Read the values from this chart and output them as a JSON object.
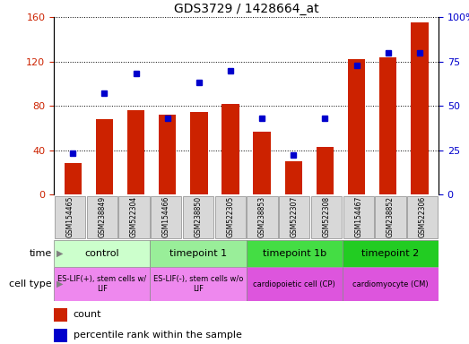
{
  "title": "GDS3729 / 1428664_at",
  "samples": [
    "GSM154465",
    "GSM238849",
    "GSM522304",
    "GSM154466",
    "GSM238850",
    "GSM522305",
    "GSM238853",
    "GSM522307",
    "GSM522308",
    "GSM154467",
    "GSM238852",
    "GSM522306"
  ],
  "counts": [
    28,
    68,
    76,
    72,
    74,
    82,
    57,
    30,
    43,
    122,
    124,
    155
  ],
  "percentiles": [
    23,
    57,
    68,
    43,
    63,
    70,
    43,
    22,
    43,
    73,
    80,
    80
  ],
  "ylim_left": [
    0,
    160
  ],
  "ylim_right": [
    0,
    100
  ],
  "yticks_left": [
    0,
    40,
    80,
    120,
    160
  ],
  "yticks_right": [
    0,
    25,
    50,
    75,
    100
  ],
  "bar_color": "#cc2200",
  "percentile_color": "#0000cc",
  "groups": [
    {
      "label": "control",
      "start": 0,
      "end": 3,
      "color": "#ccffcc"
    },
    {
      "label": "timepoint 1",
      "start": 3,
      "end": 6,
      "color": "#99ee99"
    },
    {
      "label": "timepoint 1b",
      "start": 6,
      "end": 9,
      "color": "#44dd44"
    },
    {
      "label": "timepoint 2",
      "start": 9,
      "end": 12,
      "color": "#22cc22"
    }
  ],
  "cell_types": [
    {
      "label": "ES-LIF(+), stem cells w/\nLIF",
      "start": 0,
      "end": 3,
      "color": "#ee88ee"
    },
    {
      "label": "ES-LIF(-), stem cells w/o\nLIF",
      "start": 3,
      "end": 6,
      "color": "#ee88ee"
    },
    {
      "label": "cardiopoietic cell (CP)",
      "start": 6,
      "end": 9,
      "color": "#dd55dd"
    },
    {
      "label": "cardiomyocyte (CM)",
      "start": 9,
      "end": 12,
      "color": "#dd55dd"
    }
  ],
  "bg_color": "#ffffff",
  "title_fontsize": 10,
  "left_axis_color": "#cc2200",
  "right_axis_color": "#0000cc"
}
